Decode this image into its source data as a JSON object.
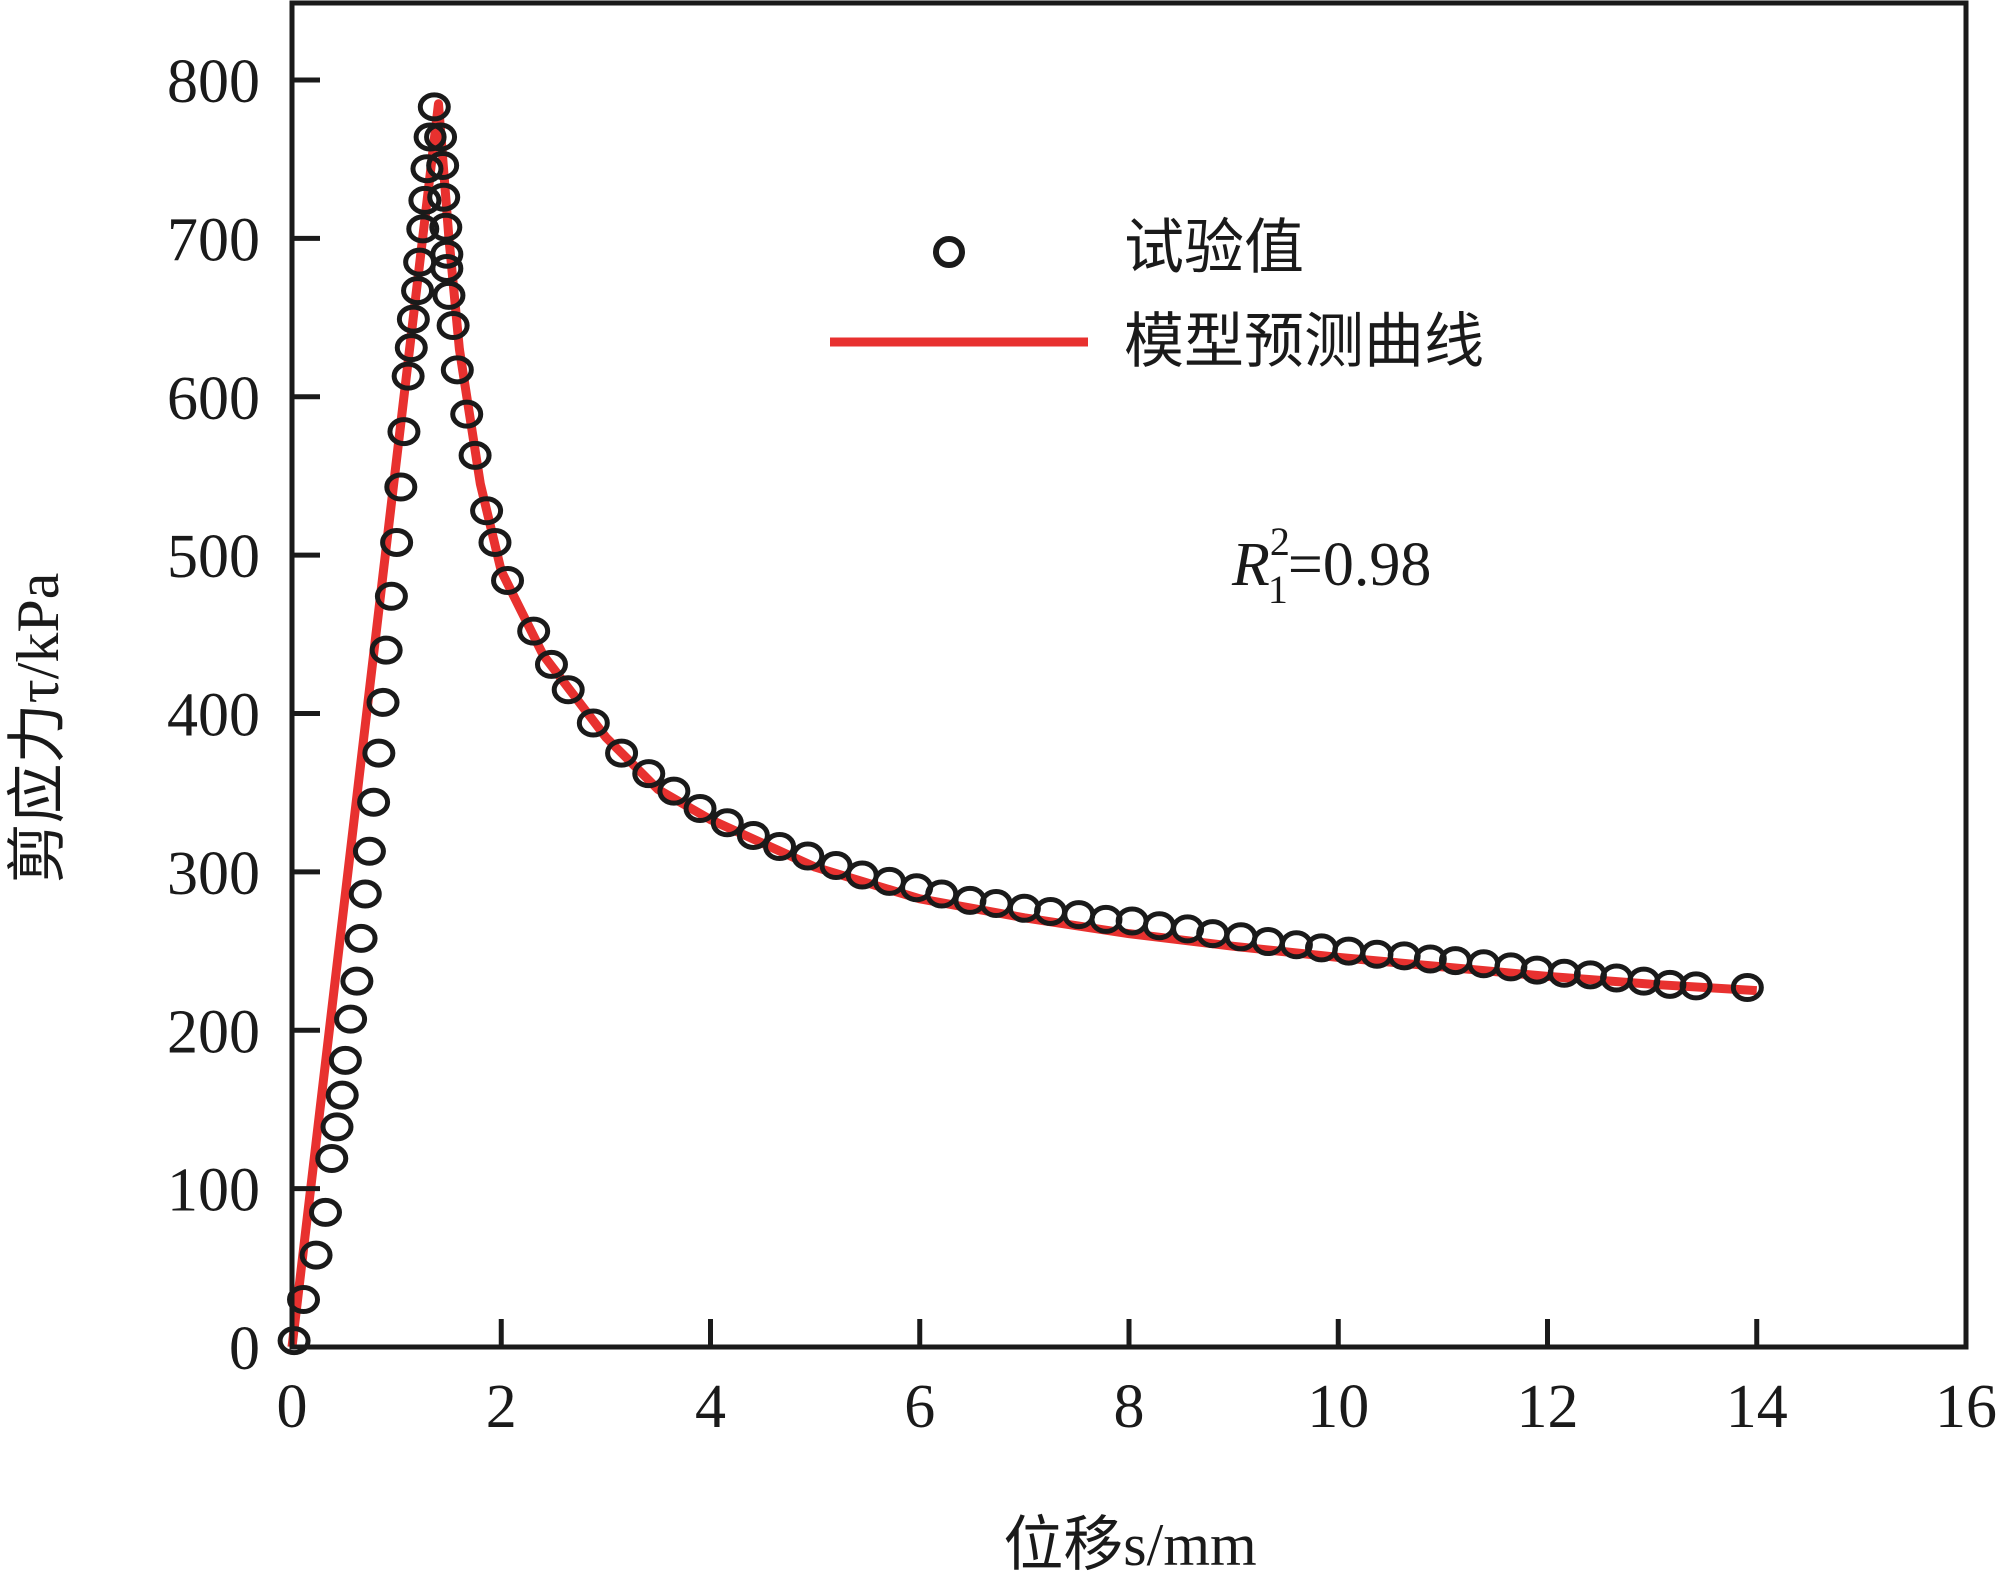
{
  "chart_data": {
    "type": "scatter",
    "title": "",
    "xlabel": "位移s/mm",
    "ylabel": "剪应力τ/kPa",
    "xlim": [
      0,
      16
    ],
    "ylim": [
      0,
      800
    ],
    "xticks": [
      0,
      2,
      4,
      6,
      8,
      10,
      12,
      14,
      16
    ],
    "yticks": [
      0,
      100,
      200,
      300,
      400,
      500,
      600,
      700,
      800
    ],
    "grid": false,
    "legend_position": "top-right",
    "annotation": {
      "prefix": "R",
      "sup": "2",
      "sub": "1",
      "value": "=0.98"
    },
    "colors": {
      "measured": "#1a1a1a",
      "model": "#e8312f"
    },
    "series": [
      {
        "name": "试验值",
        "type": "scatter",
        "x": [
          0.02,
          0.11,
          0.23,
          0.32,
          0.38,
          0.43,
          0.48,
          0.51,
          0.56,
          0.62,
          0.66,
          0.7,
          0.74,
          0.78,
          0.83,
          0.87,
          0.9,
          0.95,
          1.0,
          1.04,
          1.07,
          1.11,
          1.14,
          1.16,
          1.2,
          1.22,
          1.25,
          1.27,
          1.29,
          1.32,
          1.36,
          1.42,
          1.44,
          1.45,
          1.47,
          1.48,
          1.48,
          1.5,
          1.54,
          1.58,
          1.67,
          1.75,
          1.86,
          1.94,
          2.06,
          2.31,
          2.48,
          2.64,
          2.88,
          3.15,
          3.41,
          3.65,
          3.9,
          4.16,
          4.41,
          4.66,
          4.93,
          5.2,
          5.45,
          5.71,
          5.97,
          6.21,
          6.48,
          6.73,
          7.0,
          7.25,
          7.52,
          7.78,
          8.03,
          8.29,
          8.56,
          8.8,
          9.07,
          9.33,
          9.6,
          9.84,
          10.1,
          10.37,
          10.63,
          10.88,
          11.12,
          11.39,
          11.65,
          11.9,
          12.16,
          12.41,
          12.66,
          12.92,
          13.17,
          13.42,
          13.91
        ],
        "y": [
          4,
          30,
          58,
          85,
          119,
          139,
          159,
          181,
          207,
          231,
          258,
          286,
          313,
          344,
          375,
          407,
          440,
          474,
          508,
          543,
          578,
          613,
          631,
          649,
          667,
          685,
          706,
          724,
          744,
          764,
          783,
          764,
          746,
          726,
          707,
          690,
          681,
          664,
          645,
          617,
          589,
          563,
          528,
          508,
          484,
          452,
          431,
          415,
          394,
          375,
          362,
          351,
          340,
          331,
          323,
          316,
          310,
          304,
          298,
          294,
          290,
          286,
          282,
          280,
          277,
          275,
          273,
          270,
          269,
          266,
          264,
          261,
          259,
          256,
          254,
          252,
          250,
          248,
          247,
          245,
          244,
          242,
          240,
          238,
          236,
          235,
          233,
          231,
          229,
          228,
          227
        ]
      },
      {
        "name": "模型预测曲线",
        "type": "line",
        "x": [
          0,
          1.4,
          1.5,
          1.6,
          1.8,
          2.0,
          2.4,
          3.0,
          3.5,
          4.0,
          5.0,
          6.0,
          7.0,
          8.0,
          9.0,
          10.0,
          11.0,
          12.0,
          13.0,
          14.0
        ],
        "y": [
          0,
          785,
          700,
          630,
          545,
          490,
          437,
          385,
          352,
          333,
          303,
          283,
          271,
          261,
          253,
          246,
          240,
          234,
          229,
          225
        ]
      }
    ]
  }
}
